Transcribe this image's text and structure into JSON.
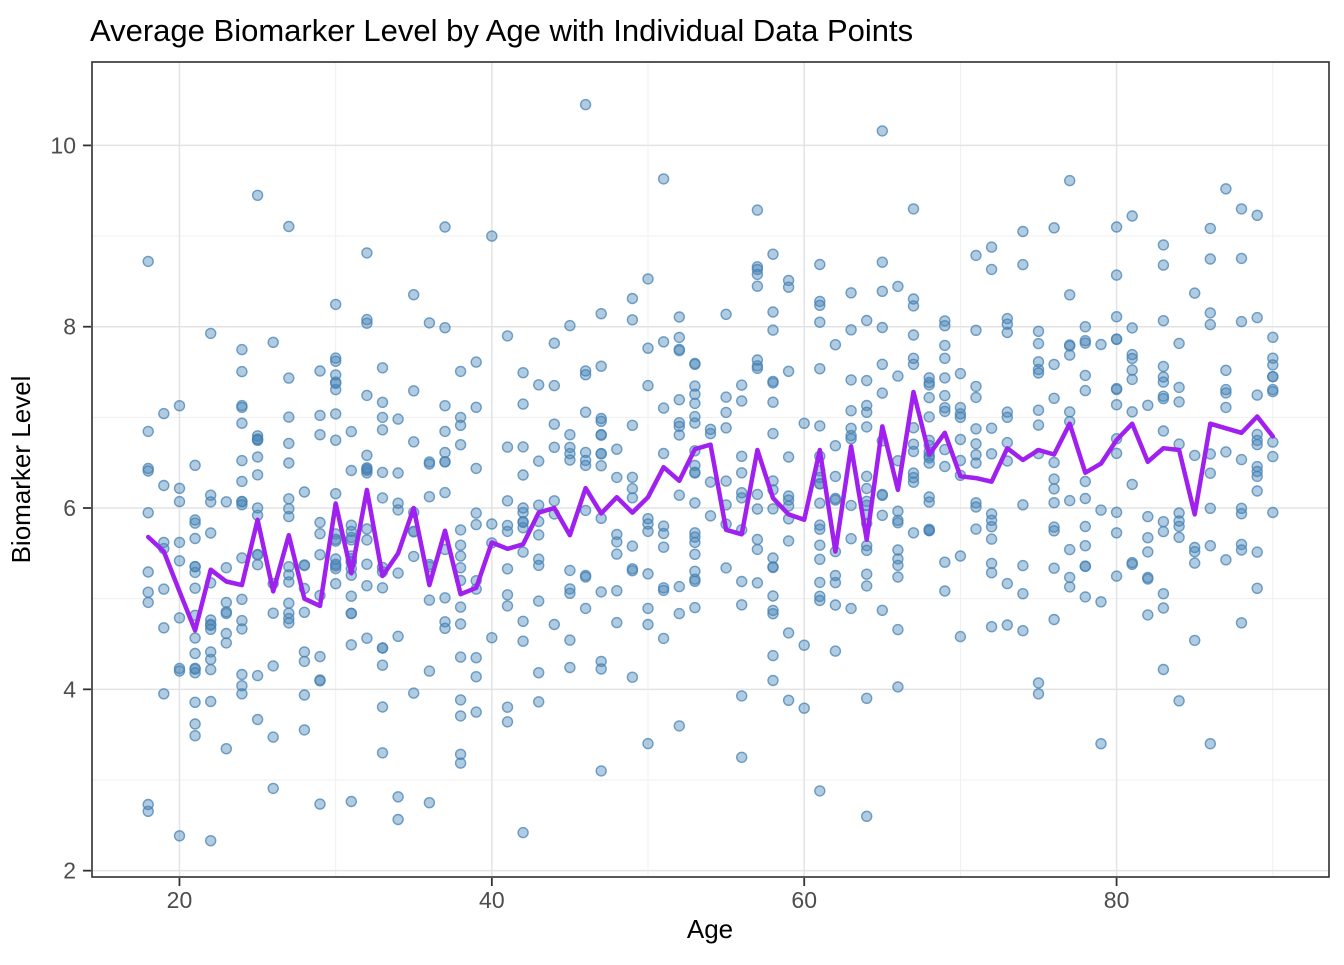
{
  "title": "Average Biomarker Level by Age with Individual Data Points",
  "chart_data": {
    "type": "scatter",
    "title": "Average Biomarker Level by Age with Individual Data Points",
    "xlabel": "Age",
    "ylabel": "Biomarker Level",
    "xlim": [
      14.4,
      93.6
    ],
    "ylim": [
      1.93,
      10.92
    ],
    "x_ticks": [
      20,
      40,
      60,
      80
    ],
    "x_tick_labels": [
      "20",
      "40",
      "60",
      "80"
    ],
    "y_ticks": [
      2,
      4,
      6,
      8,
      10
    ],
    "y_tick_labels": [
      "2",
      "4",
      "6",
      "8",
      "10"
    ],
    "x_minor_gridlines": [
      30,
      50,
      70,
      90
    ],
    "y_minor_gridlines": [
      3,
      5,
      7,
      9
    ],
    "grid": "major+minor",
    "legend_position": "none",
    "mean_line": {
      "name": "average-biomarker-by-age",
      "color": "#A020F0",
      "stroke_width": 4.5,
      "age_start": 18,
      "age_step": 1,
      "values": [
        5.68,
        5.52,
        5.08,
        4.65,
        5.32,
        5.19,
        5.15,
        5.87,
        5.08,
        5.7,
        5.0,
        4.92,
        6.05,
        5.28,
        6.2,
        5.25,
        5.5,
        6.0,
        5.15,
        5.75,
        5.05,
        5.12,
        5.62,
        5.55,
        5.6,
        5.95,
        6.0,
        5.7,
        6.22,
        5.94,
        6.12,
        5.95,
        6.12,
        6.45,
        6.3,
        6.65,
        6.7,
        5.76,
        5.71,
        6.64,
        6.11,
        5.93,
        5.87,
        6.64,
        5.52,
        6.68,
        5.65,
        6.9,
        6.2,
        7.28,
        6.59,
        6.83,
        6.35,
        6.33,
        6.29,
        6.66,
        6.53,
        6.64,
        6.59,
        6.93,
        6.39,
        6.49,
        6.75,
        6.93,
        6.51,
        6.66,
        6.64,
        5.93,
        6.93,
        6.88,
        6.83,
        7.01,
        6.79
      ]
    },
    "points": {
      "name": "individual-data-points",
      "color": "#4682B4",
      "fill_opacity": 0.42,
      "stroke_opacity": 0.75,
      "radius": 5,
      "generator": {
        "seed": 42,
        "count": 778,
        "age_min": 18,
        "age_max": 90,
        "noise_sd": 1.18,
        "y_min": 2.3,
        "y_max": 10.5
      },
      "observed_extremes": [
        [
          46,
          10.45
        ],
        [
          25,
          9.45
        ],
        [
          51,
          9.63
        ],
        [
          67,
          9.3
        ],
        [
          88,
          9.3
        ],
        [
          37,
          9.1
        ],
        [
          40,
          9.0
        ],
        [
          74,
          9.05
        ],
        [
          80,
          9.1
        ],
        [
          58,
          8.8
        ],
        [
          18,
          8.72
        ],
        [
          18,
          2.73
        ],
        [
          22,
          2.33
        ],
        [
          42,
          2.42
        ],
        [
          64,
          2.6
        ],
        [
          61,
          2.88
        ],
        [
          36,
          2.75
        ],
        [
          33,
          3.3
        ],
        [
          79,
          3.4
        ],
        [
          86,
          3.4
        ],
        [
          56,
          3.25
        ],
        [
          47,
          3.1
        ]
      ]
    },
    "theme": {
      "panel_background": "#FFFFFF",
      "grid_major_color": "#E3E3E3",
      "grid_minor_color": "#EFEFEF",
      "panel_border_color": "#2E2E2E",
      "tick_color": "#333333",
      "tick_label_color": "#4D4D4D",
      "title_color": "#000000",
      "axis_title_color": "#000000"
    }
  }
}
